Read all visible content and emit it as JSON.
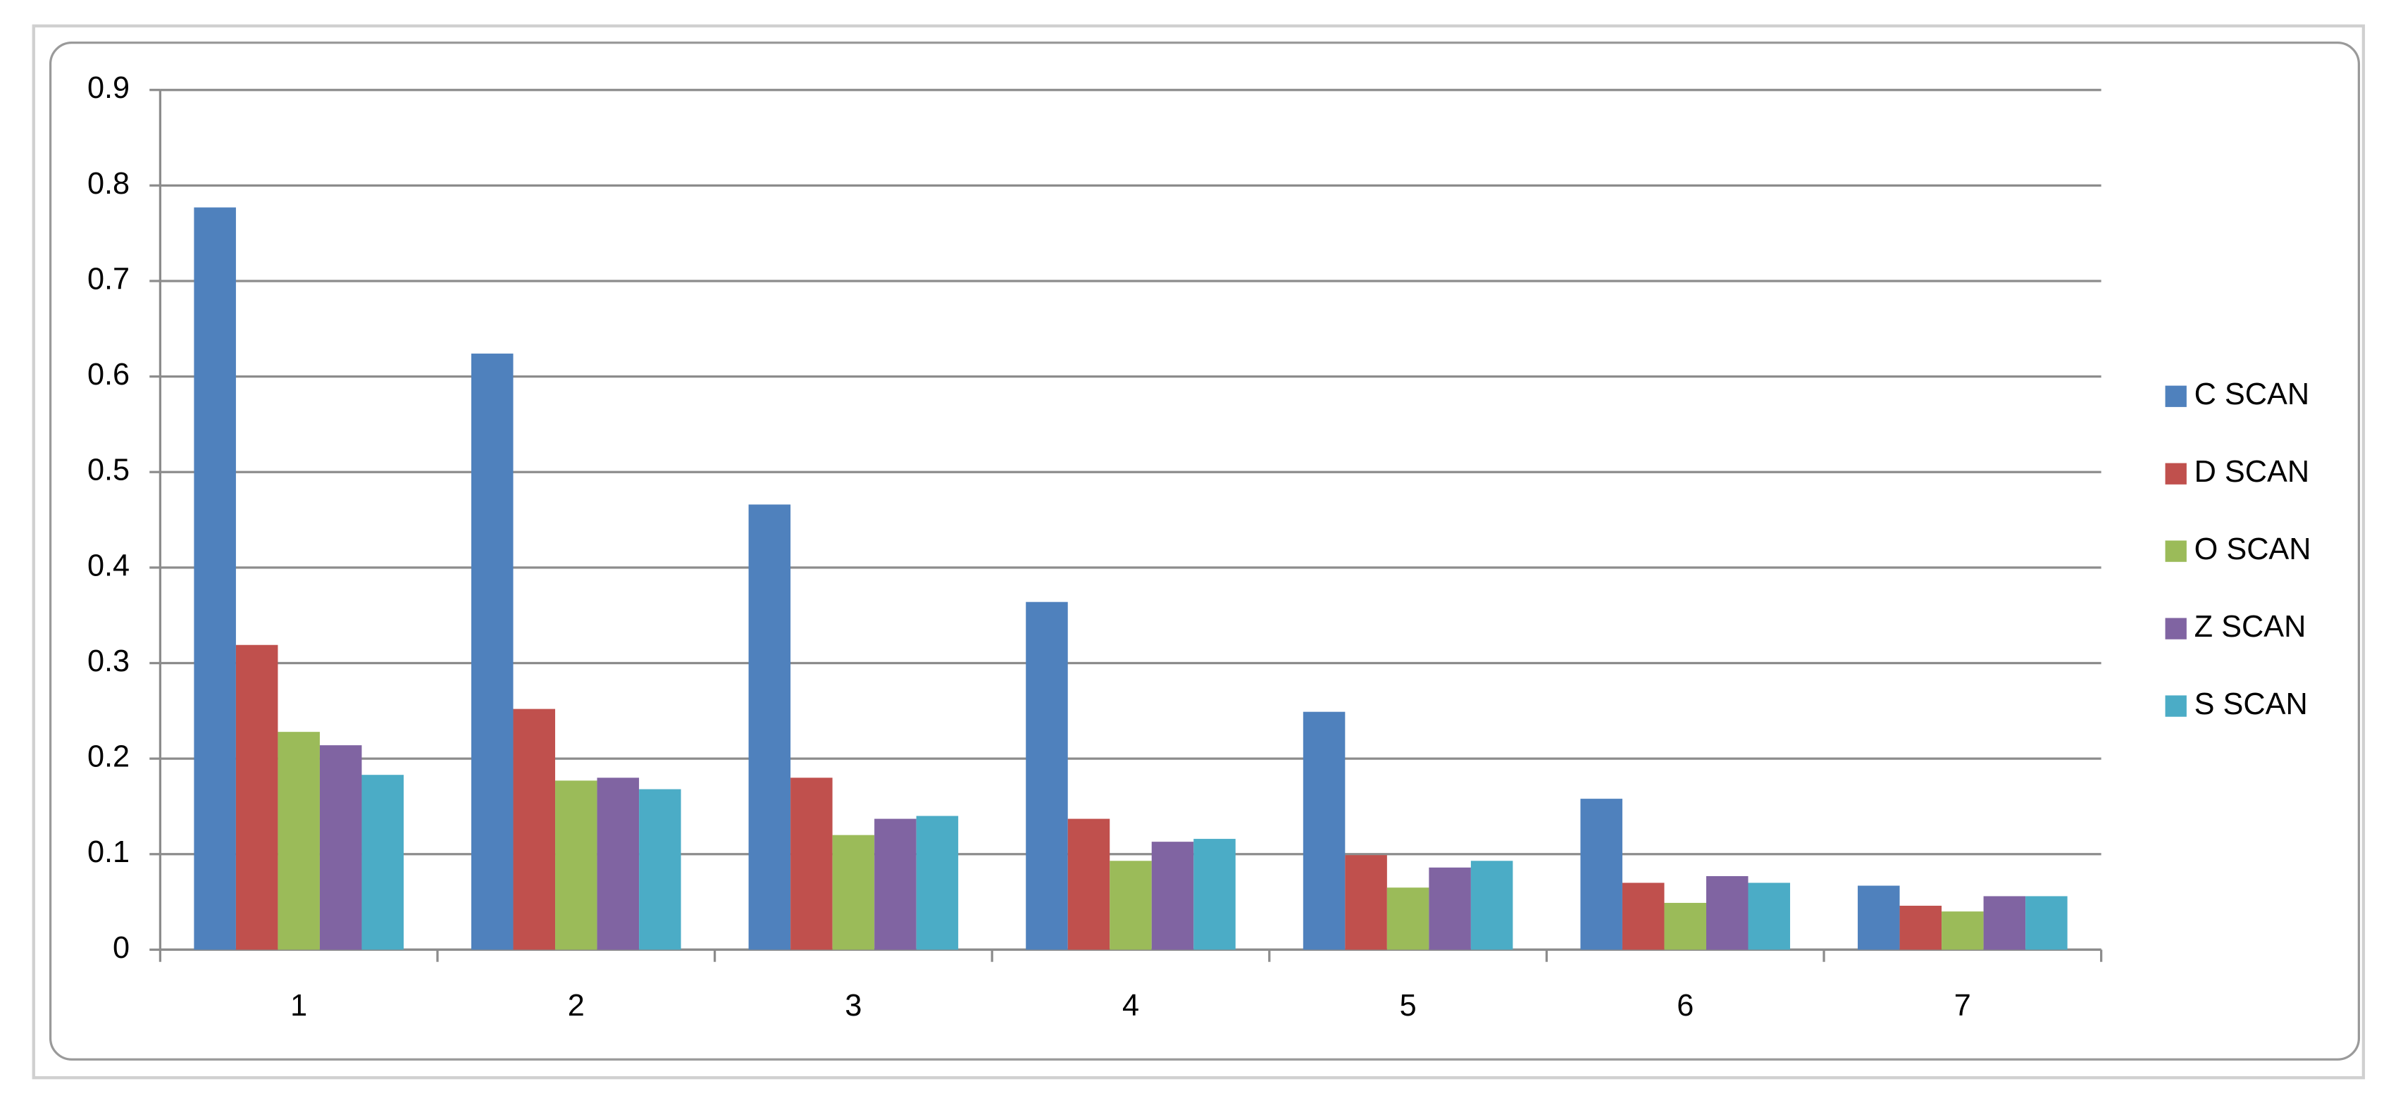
{
  "chart_data": {
    "type": "bar",
    "categories": [
      "1",
      "2",
      "3",
      "4",
      "5",
      "6",
      "7"
    ],
    "series": [
      {
        "name": "C SCAN",
        "color": "#4f81bd",
        "values": [
          0.777,
          0.624,
          0.466,
          0.364,
          0.249,
          0.158,
          0.067
        ]
      },
      {
        "name": "D SCAN",
        "color": "#c0504d",
        "values": [
          0.319,
          0.252,
          0.18,
          0.137,
          0.099,
          0.07,
          0.046
        ]
      },
      {
        "name": "O SCAN",
        "color": "#9bbb59",
        "values": [
          0.228,
          0.177,
          0.12,
          0.093,
          0.065,
          0.049,
          0.04
        ]
      },
      {
        "name": "Z SCAN",
        "color": "#8064a2",
        "values": [
          0.214,
          0.18,
          0.137,
          0.113,
          0.086,
          0.077,
          0.056
        ]
      },
      {
        "name": "S SCAN",
        "color": "#4bacc6",
        "values": [
          0.183,
          0.168,
          0.14,
          0.116,
          0.093,
          0.07,
          0.056
        ]
      }
    ],
    "ylim": [
      0,
      0.9
    ],
    "yticks": [
      0,
      0.1,
      0.2,
      0.3,
      0.4,
      0.5,
      0.6,
      0.7,
      0.8,
      0.9
    ],
    "grid": true,
    "legend": "right"
  }
}
